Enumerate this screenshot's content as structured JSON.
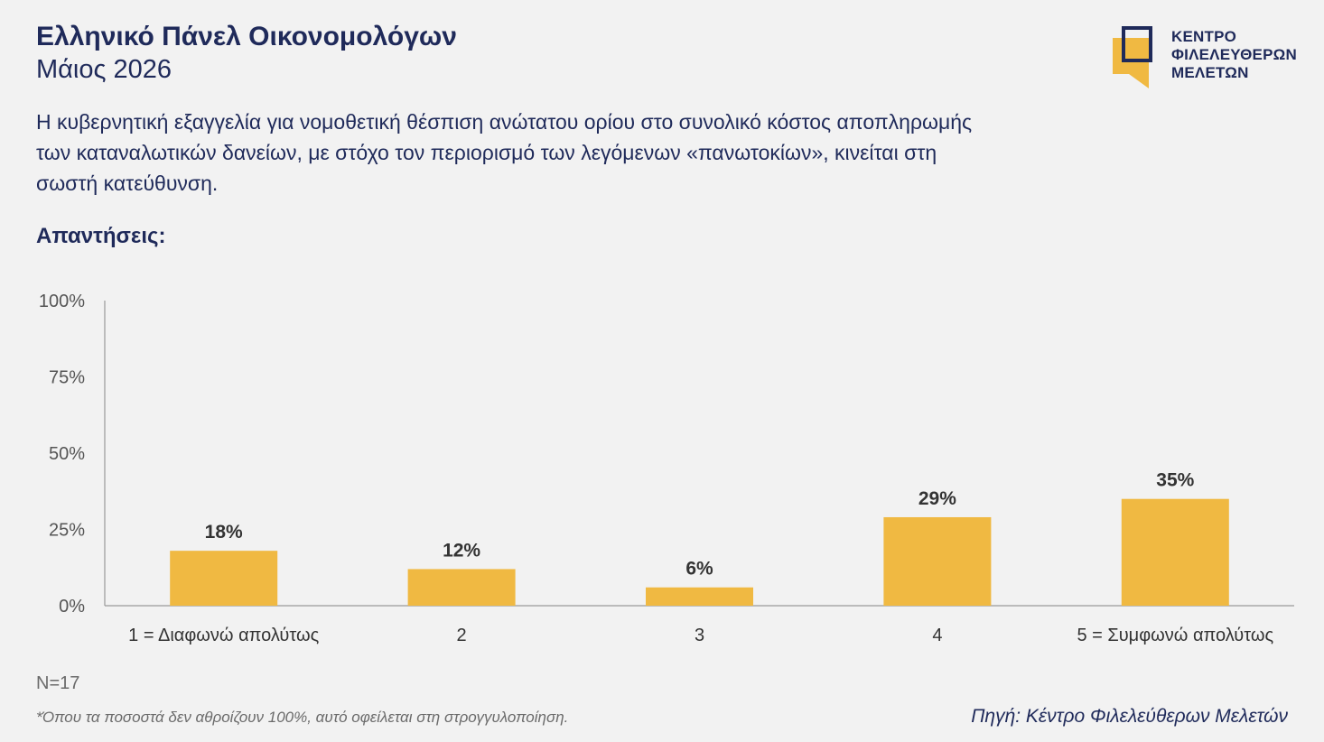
{
  "header": {
    "title": "Ελληνικό Πάνελ Οικονομολόγων",
    "date": "Μάιος 2026"
  },
  "logo": {
    "line1": "ΚΕΝΤΡΟ",
    "line2": "ΦΙΛΕΛΕΥΘΕΡΩΝ",
    "line3": "ΜΕΛΕΤΩΝ",
    "icon": "speech-bubble-logo-icon"
  },
  "question": "Η κυβερνητική εξαγγελία για νομοθετική θέσπιση ανώτατου ορίου στο συνολικό κόστος αποπληρωμής των καταναλωτικών δανείων, με στόχο τον περιορισμό των λεγόμενων «πανωτοκίων», κινείται στη σωστή κατεύθυνση.",
  "answers_label": "Απαντήσεις:",
  "chart_data": {
    "type": "bar",
    "categories": [
      "1 = Διαφωνώ απολύτως",
      "2",
      "3",
      "4",
      "5 = Συμφωνώ απολύτως"
    ],
    "values": [
      18,
      12,
      6,
      29,
      35
    ],
    "value_labels": [
      "18%",
      "12%",
      "6%",
      "29%",
      "35%"
    ],
    "yticks": [
      0,
      25,
      50,
      75,
      100
    ],
    "ytick_labels": [
      "0%",
      "25%",
      "50%",
      "75%",
      "100%"
    ],
    "ylim": [
      0,
      100
    ],
    "grid": false,
    "bar_color": "#f0b942"
  },
  "footer": {
    "n": "N=17",
    "footnote": "*Όπου τα ποσοστά δεν αθροίζουν 100%, αυτό οφείλεται στη στρογγυλοποίηση.",
    "source": "Πηγή: Κέντρο Φιλελεύθερων Μελετών"
  },
  "colors": {
    "text_primary": "#1f2a5a",
    "accent": "#f0b942",
    "background": "#f2f2f2"
  }
}
